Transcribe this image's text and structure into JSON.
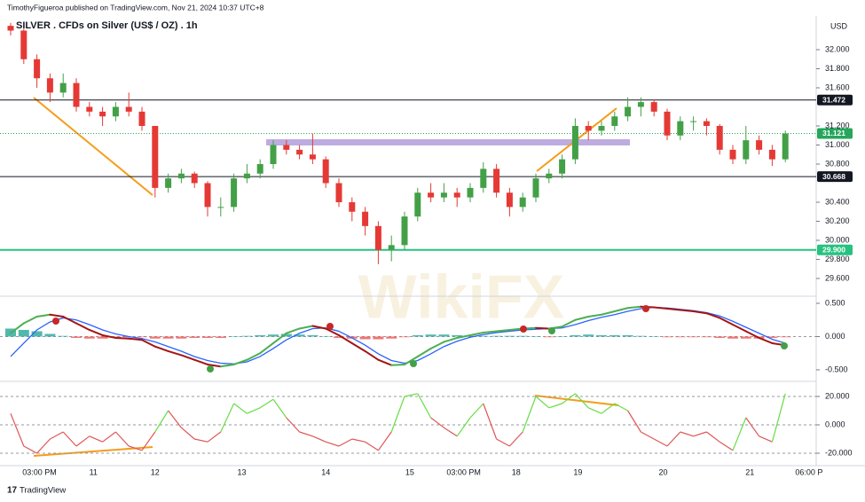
{
  "header": {
    "publisher": "TimothyFigueroa published on TradingView.com, Nov 21, 2024 10:37 UTC+8",
    "footer": "TradingView",
    "watermark": "WikiFX"
  },
  "chart_data": {
    "type": "candlestick",
    "title": "SILVER . CFDs on Silver (US$ / OZ) . 1h",
    "currency": "USD",
    "up_color": "#43a047",
    "down_color": "#e53935",
    "open": [
      32.25,
      32.2,
      31.9,
      31.7,
      31.55,
      31.65,
      31.4,
      31.35,
      31.3,
      31.4,
      31.35,
      31.2,
      30.55,
      30.65,
      30.7,
      30.6,
      30.35,
      30.35,
      30.65,
      30.7,
      30.8,
      31.0,
      30.95,
      30.9,
      30.85,
      30.6,
      30.4,
      30.3,
      30.15,
      29.9,
      29.95,
      30.25,
      30.5,
      30.45,
      30.5,
      30.45,
      30.55,
      30.75,
      30.5,
      30.35,
      30.45,
      30.65,
      30.7,
      30.85,
      31.2,
      31.15,
      31.2,
      31.3,
      31.4,
      31.45,
      31.35,
      31.1,
      31.25,
      31.25,
      31.2,
      30.95,
      30.85,
      31.05,
      30.95,
      30.85
    ],
    "high": [
      32.28,
      32.22,
      31.95,
      31.75,
      31.75,
      31.7,
      31.45,
      31.4,
      31.45,
      31.55,
      31.4,
      31.2,
      30.7,
      30.75,
      30.72,
      30.62,
      30.45,
      30.7,
      30.8,
      30.85,
      31.05,
      31.05,
      31.0,
      31.12,
      30.88,
      30.65,
      30.45,
      30.35,
      30.2,
      30.05,
      30.3,
      30.55,
      30.6,
      30.6,
      30.55,
      30.6,
      30.82,
      30.8,
      30.55,
      30.5,
      30.7,
      30.75,
      30.9,
      31.28,
      31.25,
      31.25,
      31.35,
      31.5,
      31.5,
      31.48,
      31.38,
      31.3,
      31.3,
      31.28,
      31.22,
      31.0,
      31.2,
      31.1,
      31.0,
      31.15
    ],
    "low": [
      32.15,
      31.85,
      31.6,
      31.45,
      31.5,
      31.35,
      31.3,
      31.2,
      31.25,
      31.3,
      31.15,
      30.45,
      30.5,
      30.6,
      30.55,
      30.25,
      30.25,
      30.3,
      30.6,
      30.65,
      30.75,
      30.9,
      30.85,
      30.8,
      30.55,
      30.35,
      30.2,
      30.05,
      29.75,
      29.78,
      29.9,
      30.2,
      30.4,
      30.4,
      30.35,
      30.4,
      30.5,
      30.45,
      30.25,
      30.3,
      30.4,
      30.6,
      30.65,
      30.8,
      31.05,
      31.1,
      31.15,
      31.25,
      31.3,
      31.3,
      31.05,
      31.05,
      31.15,
      31.1,
      30.9,
      30.8,
      30.8,
      30.9,
      30.78,
      30.82
    ],
    "close": [
      32.2,
      31.9,
      31.7,
      31.55,
      31.65,
      31.4,
      31.35,
      31.3,
      31.4,
      31.35,
      31.2,
      30.55,
      30.65,
      30.7,
      30.6,
      30.35,
      30.35,
      30.65,
      30.7,
      30.8,
      31.0,
      30.95,
      30.9,
      30.85,
      30.6,
      30.4,
      30.3,
      30.15,
      29.9,
      29.95,
      30.25,
      30.5,
      30.45,
      30.5,
      30.45,
      30.55,
      30.75,
      30.5,
      30.35,
      30.45,
      30.65,
      30.7,
      30.85,
      31.2,
      31.15,
      31.2,
      31.3,
      31.4,
      31.45,
      31.35,
      31.1,
      31.25,
      31.25,
      31.2,
      30.95,
      30.85,
      31.05,
      30.95,
      30.85,
      31.121
    ],
    "ylim": [
      29.423,
      32.335
    ],
    "yticks": [
      {
        "value": 32.0,
        "label": "32.000"
      },
      {
        "value": 31.8,
        "label": "31.800"
      },
      {
        "value": 31.6,
        "label": "31.600"
      },
      {
        "value": 31.2,
        "label": "31.200"
      },
      {
        "value": 31.0,
        "label": "31.000"
      },
      {
        "value": 30.8,
        "label": "30.800"
      },
      {
        "value": 30.4,
        "label": "30.400"
      },
      {
        "value": 30.2,
        "label": "30.200"
      },
      {
        "value": 30.0,
        "label": "30.000"
      },
      {
        "value": 29.8,
        "label": "29.800"
      },
      {
        "value": 29.6,
        "label": "29.600"
      }
    ],
    "levels": [
      {
        "value": 31.472,
        "color": "#131722",
        "style": "solid"
      },
      {
        "value": 31.121,
        "color": "#26a65b",
        "style": "dotted"
      },
      {
        "value": 30.668,
        "color": "#131722",
        "style": "solid"
      },
      {
        "value": 29.9,
        "label": "29.900",
        "color": "#26c281",
        "style": "solid"
      }
    ],
    "x_labels": [
      {
        "label": "03:00 PM",
        "at": 2.2
      },
      {
        "label": "11",
        "at": 6.3
      },
      {
        "label": "12",
        "at": 11
      },
      {
        "label": "13",
        "at": 17.6
      },
      {
        "label": "14",
        "at": 24
      },
      {
        "label": "15",
        "at": 30.4
      },
      {
        "label": "03:00 PM",
        "at": 34.5
      },
      {
        "label": "18",
        "at": 38.5
      },
      {
        "label": "19",
        "at": 43.2
      },
      {
        "label": "20",
        "at": 49.7
      },
      {
        "label": "21",
        "at": 56.3
      },
      {
        "label": "06:00 P",
        "at": 60.8
      }
    ],
    "macd": {
      "ylim": [
        -0.647,
        0.593
      ],
      "yticks": [
        {
          "value": 0.5,
          "label": "0.500"
        },
        {
          "value": 0,
          "label": "0.000"
        },
        {
          "value": -0.5,
          "label": "-0.500"
        }
      ],
      "macd": [
        0.05,
        0.2,
        0.3,
        0.33,
        0.3,
        0.2,
        0.1,
        0.02,
        -0.02,
        -0.03,
        -0.05,
        -0.15,
        -0.22,
        -0.28,
        -0.35,
        -0.42,
        -0.45,
        -0.42,
        -0.35,
        -0.25,
        -0.1,
        0.05,
        0.12,
        0.16,
        0.12,
        0.02,
        -0.1,
        -0.22,
        -0.35,
        -0.43,
        -0.42,
        -0.3,
        -0.18,
        -0.08,
        -0.02,
        0.02,
        0.06,
        0.08,
        0.1,
        0.12,
        0.13,
        0.12,
        0.15,
        0.25,
        0.3,
        0.33,
        0.38,
        0.43,
        0.45,
        0.44,
        0.42,
        0.4,
        0.38,
        0.35,
        0.28,
        0.18,
        0.08,
        -0.02,
        -0.1,
        -0.13
      ],
      "signal": [
        -0.3,
        -0.1,
        0.1,
        0.22,
        0.28,
        0.25,
        0.18,
        0.1,
        0.04,
        0.0,
        -0.03,
        -0.08,
        -0.15,
        -0.22,
        -0.3,
        -0.36,
        -0.4,
        -0.41,
        -0.38,
        -0.3,
        -0.18,
        -0.05,
        0.05,
        0.12,
        0.13,
        0.08,
        -0.02,
        -0.13,
        -0.26,
        -0.36,
        -0.4,
        -0.36,
        -0.26,
        -0.15,
        -0.07,
        -0.01,
        0.03,
        0.06,
        0.08,
        0.1,
        0.11,
        0.12,
        0.13,
        0.18,
        0.24,
        0.29,
        0.33,
        0.38,
        0.42,
        0.44,
        0.43,
        0.41,
        0.39,
        0.36,
        0.31,
        0.23,
        0.14,
        0.05,
        -0.04,
        -0.1
      ],
      "histogram": [
        0.12,
        0.1,
        0.08,
        0.04,
        0.01,
        -0.02,
        -0.03,
        -0.03,
        -0.02,
        -0.01,
        -0.01,
        -0.03,
        -0.03,
        -0.03,
        -0.02,
        -0.02,
        -0.02,
        0.0,
        0.01,
        0.02,
        0.03,
        0.04,
        0.03,
        0.02,
        0.0,
        -0.02,
        -0.03,
        -0.04,
        -0.04,
        -0.03,
        -0.01,
        0.02,
        0.03,
        0.03,
        0.02,
        0.01,
        0.01,
        0.01,
        0.01,
        0.01,
        0.0,
        -0.01,
        0.0,
        0.02,
        0.03,
        0.02,
        0.02,
        0.02,
        0.01,
        0.0,
        -0.01,
        -0.01,
        -0.01,
        -0.01,
        -0.02,
        -0.03,
        -0.03,
        -0.03,
        -0.02,
        -0.01
      ],
      "rise_color": "#4caf50",
      "fall_color": "#a31515",
      "signal_color": "#2962ff",
      "hist_up_color": "#26a69a",
      "hist_down_color": "#ef5350"
    },
    "oscillator": {
      "ylim": [
        -28.75,
        29.375
      ],
      "yticks": [
        {
          "value": 20,
          "label": "20.000"
        },
        {
          "value": 0,
          "label": "0.000"
        },
        {
          "value": -20,
          "label": "-20.000"
        }
      ],
      "values": [
        8,
        -15,
        -20,
        -10,
        -5,
        -15,
        -8,
        -12,
        -5,
        -15,
        -18,
        -5,
        10,
        -2,
        -10,
        -12,
        -5,
        15,
        8,
        12,
        18,
        5,
        -5,
        -8,
        -12,
        -15,
        -10,
        -12,
        -18,
        -5,
        20,
        22,
        5,
        -2,
        -8,
        5,
        15,
        -10,
        -15,
        -5,
        20,
        12,
        15,
        22,
        12,
        8,
        15,
        10,
        -5,
        -10,
        -15,
        -5,
        -8,
        -5,
        -12,
        -18,
        5,
        -8,
        -12,
        22
      ],
      "pos_color": "#66dd44",
      "neg_color": "#e05555"
    }
  }
}
